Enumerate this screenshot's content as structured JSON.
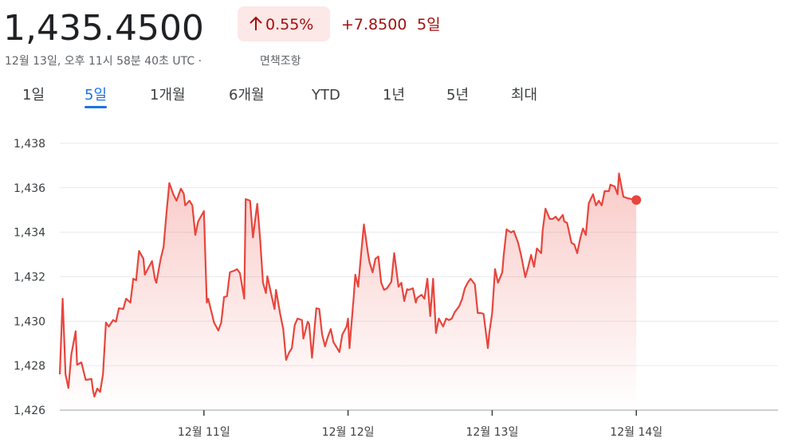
{
  "header": {
    "price": "1,435.4500",
    "change_percent": "0.55%",
    "change": "+7.8500",
    "period": "5일",
    "timestamp": "12월 13일, 오후 11시 58분 40초 UTC ·",
    "disclaimer": "면책조항"
  },
  "tabs": {
    "items": [
      "1일",
      "5일",
      "1개월",
      "6개월",
      "YTD",
      "1년",
      "5년",
      "최대"
    ],
    "active": 1
  },
  "chart_data": {
    "type": "line",
    "x": [
      0.0,
      0.02,
      0.04,
      0.06,
      0.08,
      0.11,
      0.12,
      0.15,
      0.18,
      0.22,
      0.23,
      0.24,
      0.26,
      0.28,
      0.3,
      0.32,
      0.34,
      0.37,
      0.39,
      0.41,
      0.44,
      0.46,
      0.49,
      0.51,
      0.53,
      0.55,
      0.58,
      0.59,
      0.61,
      0.64,
      0.66,
      0.67,
      0.7,
      0.72,
      0.74,
      0.76,
      0.79,
      0.81,
      0.84,
      0.86,
      0.87,
      0.9,
      0.92,
      0.94,
      0.96,
      1.0,
      1.02,
      1.03,
      1.07,
      1.1,
      1.12,
      1.14,
      1.16,
      1.18,
      1.21,
      1.23,
      1.25,
      1.28,
      1.29,
      1.32,
      1.34,
      1.37,
      1.39,
      1.41,
      1.43,
      1.44,
      1.47,
      1.49,
      1.5,
      1.53,
      1.55,
      1.57,
      1.59,
      1.61,
      1.63,
      1.65,
      1.68,
      1.69,
      1.72,
      1.73,
      1.75,
      1.78,
      1.8,
      1.82,
      1.84,
      1.86,
      1.88,
      1.9,
      1.92,
      1.94,
      1.96,
      1.99,
      2.0,
      2.01,
      2.04,
      2.05,
      2.07,
      2.09,
      2.11,
      2.14,
      2.15,
      2.17,
      2.19,
      2.21,
      2.23,
      2.25,
      2.27,
      2.3,
      2.32,
      2.35,
      2.37,
      2.39,
      2.41,
      2.42,
      2.45,
      2.47,
      2.48,
      2.51,
      2.53,
      2.55,
      2.57,
      2.59,
      2.61,
      2.63,
      2.66,
      2.68,
      2.7,
      2.72,
      2.74,
      2.77,
      2.79,
      2.81,
      2.83,
      2.85,
      2.88,
      2.9,
      2.92,
      2.94,
      2.97,
      2.98,
      3.0,
      3.02,
      3.04,
      3.07,
      3.08,
      3.1,
      3.13,
      3.15,
      3.18,
      3.2,
      3.23,
      3.25,
      3.27,
      3.29,
      3.31,
      3.34,
      3.35,
      3.37,
      3.4,
      3.42,
      3.44,
      3.46,
      3.49,
      3.5,
      3.52,
      3.55,
      3.57,
      3.59,
      3.61,
      3.63,
      3.65,
      3.67,
      3.7,
      3.72,
      3.74,
      3.76,
      3.78,
      3.81,
      3.82,
      3.85,
      3.87,
      3.88,
      3.91,
      3.94,
      4.0
    ],
    "series": [
      {
        "color": "#e8453c",
        "values": [
          1427.61,
          1431.01,
          1427.61,
          1427.0,
          1428.51,
          1429.55,
          1428.04,
          1428.15,
          1427.36,
          1427.4,
          1426.9,
          1426.61,
          1426.97,
          1426.82,
          1427.61,
          1429.94,
          1429.76,
          1430.05,
          1429.98,
          1430.58,
          1430.55,
          1431.01,
          1430.84,
          1431.91,
          1431.84,
          1433.16,
          1432.81,
          1432.09,
          1432.34,
          1432.7,
          1431.91,
          1431.73,
          1432.81,
          1433.34,
          1434.85,
          1436.21,
          1435.67,
          1435.42,
          1435.96,
          1435.74,
          1435.21,
          1435.42,
          1435.21,
          1433.88,
          1434.49,
          1434.95,
          1430.84,
          1431.01,
          1429.94,
          1429.58,
          1429.94,
          1431.09,
          1431.12,
          1432.2,
          1432.27,
          1432.34,
          1432.16,
          1431.01,
          1435.49,
          1435.42,
          1433.77,
          1435.28,
          1433.7,
          1431.73,
          1431.27,
          1432.02,
          1431.12,
          1430.55,
          1431.41,
          1430.3,
          1429.65,
          1428.26,
          1428.58,
          1428.79,
          1429.83,
          1430.12,
          1430.05,
          1429.22,
          1429.98,
          1429.87,
          1428.36,
          1430.58,
          1430.55,
          1429.4,
          1428.87,
          1429.3,
          1429.65,
          1429.04,
          1428.83,
          1428.61,
          1429.4,
          1429.76,
          1430.12,
          1428.79,
          1431.12,
          1432.09,
          1431.55,
          1432.98,
          1434.35,
          1432.98,
          1432.63,
          1432.2,
          1432.81,
          1432.91,
          1431.73,
          1431.41,
          1431.48,
          1431.77,
          1433.06,
          1431.55,
          1431.73,
          1430.91,
          1431.44,
          1431.41,
          1431.48,
          1430.84,
          1431.05,
          1431.19,
          1431.01,
          1431.91,
          1430.23,
          1431.91,
          1429.47,
          1430.12,
          1429.76,
          1430.12,
          1430.05,
          1430.12,
          1430.41,
          1430.66,
          1430.98,
          1431.48,
          1431.73,
          1431.91,
          1431.66,
          1430.37,
          1430.37,
          1430.33,
          1428.79,
          1429.47,
          1430.37,
          1432.34,
          1431.73,
          1432.2,
          1432.98,
          1434.13,
          1433.99,
          1434.06,
          1433.52,
          1432.98,
          1431.98,
          1432.45,
          1432.98,
          1432.45,
          1433.27,
          1433.06,
          1434.06,
          1435.06,
          1434.6,
          1434.6,
          1434.7,
          1434.53,
          1434.78,
          1434.49,
          1434.42,
          1433.52,
          1433.45,
          1433.06,
          1433.7,
          1434.17,
          1433.88,
          1435.31,
          1435.71,
          1435.21,
          1435.42,
          1435.21,
          1435.85,
          1435.85,
          1436.14,
          1436.06,
          1435.71,
          1436.64,
          1435.6,
          1435.53,
          1435.45
        ]
      }
    ],
    "xlim": [
      0,
      4.95
    ],
    "xticks": [
      {
        "value": 1,
        "label": "12월 11일"
      },
      {
        "value": 2,
        "label": "12월 12일"
      },
      {
        "value": 3,
        "label": "12월 13일"
      },
      {
        "value": 4,
        "label": "12월 14일"
      }
    ],
    "ylim": [
      1426,
      1438.5
    ],
    "yticks": [
      {
        "value": 1426,
        "label": "1,426"
      },
      {
        "value": 1428,
        "label": "1,428"
      },
      {
        "value": 1430,
        "label": "1,430"
      },
      {
        "value": 1432,
        "label": "1,432"
      },
      {
        "value": 1434,
        "label": "1,434"
      },
      {
        "value": 1436,
        "label": "1,436"
      },
      {
        "value": 1438,
        "label": "1,438"
      }
    ],
    "grid": true
  }
}
